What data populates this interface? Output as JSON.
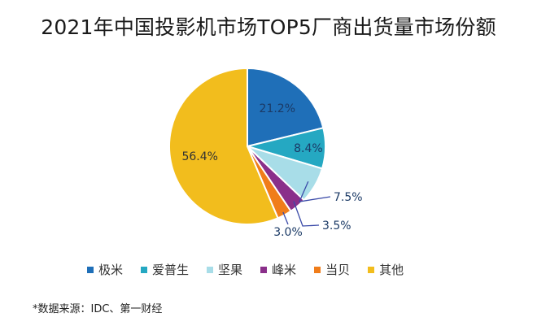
{
  "chart_data": {
    "type": "pie",
    "title": "2021年中国投影机市场TOP5厂商出货量市场份额",
    "slices": [
      {
        "name": "极米",
        "value": 21.2,
        "label": "21.2%",
        "color": "#1f6fb8"
      },
      {
        "name": "爱普生",
        "value": 8.4,
        "label": "8.4%",
        "color": "#25a8c2"
      },
      {
        "name": "坚果",
        "value": 7.5,
        "label": "7.5%",
        "color": "#a8dde8"
      },
      {
        "name": "峰米",
        "value": 3.5,
        "label": "3.5%",
        "color": "#8a2f8a"
      },
      {
        "name": "当贝",
        "value": 3.0,
        "label": "3.0%",
        "color": "#f07d1a"
      },
      {
        "name": "其他",
        "value": 56.4,
        "label": "56.4%",
        "color": "#f2bd1d"
      }
    ],
    "legend_position": "bottom"
  },
  "source_note": "*数据来源：IDC、第一财经"
}
